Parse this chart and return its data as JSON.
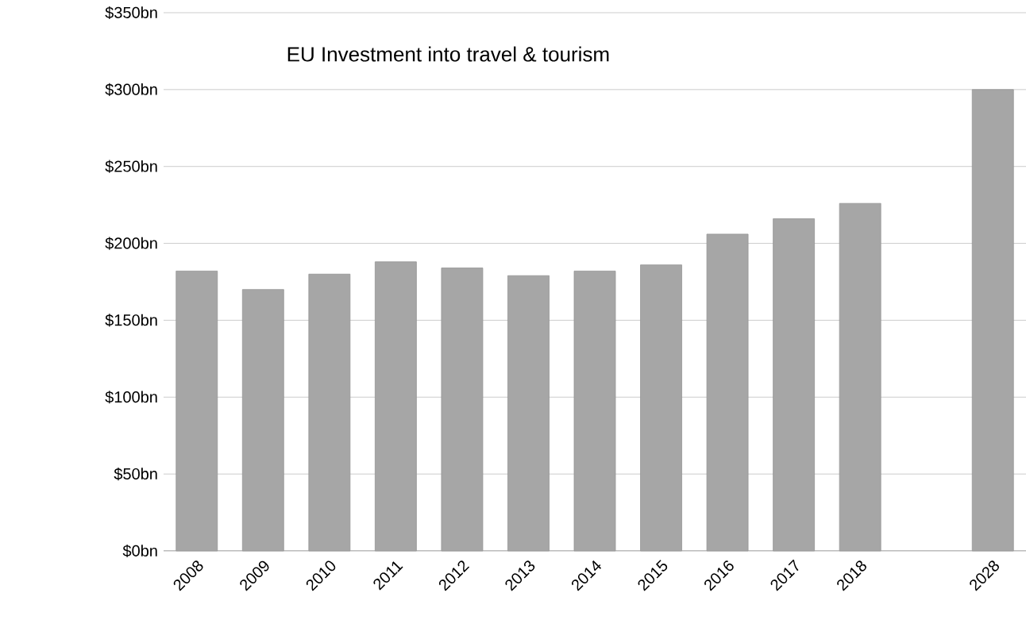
{
  "chart_data": {
    "type": "bar",
    "title": "EU Investment into travel & tourism",
    "categories": [
      "2008",
      "2009",
      "2010",
      "2011",
      "2012",
      "2013",
      "2014",
      "2015",
      "2016",
      "2017",
      "2018",
      null,
      "2028"
    ],
    "values": [
      182,
      170,
      180,
      188,
      184,
      179,
      182,
      186,
      206,
      216,
      226,
      null,
      300
    ],
    "color": "#a6a6a6",
    "ylim": [
      0,
      350
    ],
    "yticks": [
      {
        "value": 0,
        "label": "$0bn"
      },
      {
        "value": 50,
        "label": "$50bn"
      },
      {
        "value": 100,
        "label": "$100bn"
      },
      {
        "value": 150,
        "label": "$150bn"
      },
      {
        "value": 200,
        "label": "$200bn"
      },
      {
        "value": 250,
        "label": "$250bn"
      },
      {
        "value": 300,
        "label": "$300bn"
      },
      {
        "value": 350,
        "label": "$350bn"
      }
    ],
    "grid": "y"
  }
}
